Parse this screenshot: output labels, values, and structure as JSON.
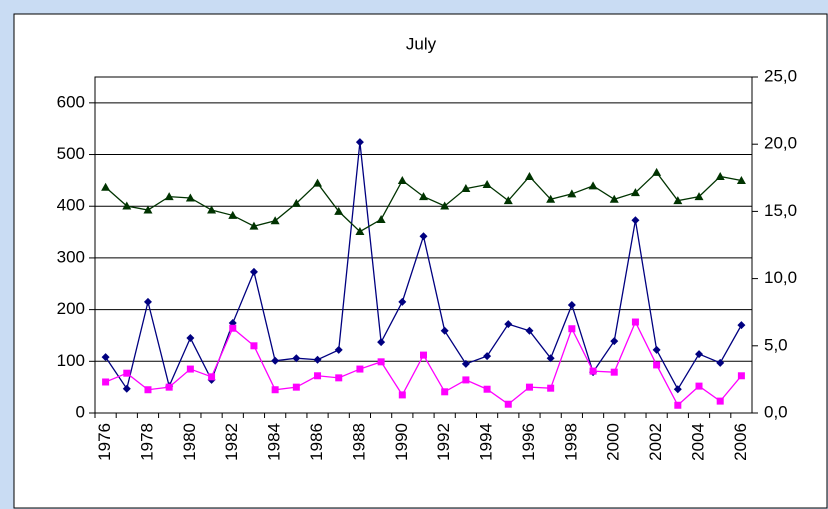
{
  "chart_data": {
    "type": "line",
    "title": "July",
    "categories": [
      "1976",
      null,
      "1978",
      null,
      "1980",
      null,
      "1982",
      null,
      "1984",
      null,
      "1986",
      null,
      "1988",
      null,
      "1990",
      null,
      "1992",
      null,
      "1994",
      null,
      "1996",
      null,
      "1998",
      null,
      "2000",
      null,
      "2002",
      null,
      "2004",
      null,
      "2006"
    ],
    "series": [
      {
        "color": "#000080",
        "marker": "diamond",
        "values": [
          108,
          47,
          215,
          52,
          145,
          64,
          174,
          273,
          101,
          106,
          103,
          122,
          524,
          137,
          215,
          342,
          159,
          95,
          110,
          172,
          159,
          106,
          209,
          79,
          139,
          373,
          122,
          46,
          114,
          97,
          170
        ]
      },
      {
        "color": "#ff00ff",
        "marker": "square",
        "values": [
          60,
          77,
          45,
          50,
          85,
          70,
          164,
          130,
          45,
          50,
          72,
          68,
          85,
          99,
          35,
          112,
          41,
          64,
          46,
          17,
          50,
          48,
          163,
          81,
          79,
          176,
          93,
          15,
          52,
          23,
          72
        ]
      },
      {
        "color": "#003300",
        "marker": "triangle",
        "axis": "y2",
        "values": [
          16.8,
          15.4,
          15.1,
          16.1,
          16.0,
          15.1,
          14.7,
          13.9,
          14.3,
          15.6,
          17.1,
          15.0,
          13.5,
          14.4,
          17.3,
          16.1,
          15.4,
          16.7,
          17.0,
          15.8,
          17.6,
          15.9,
          16.3,
          16.9,
          15.9,
          16.4,
          17.9,
          15.8,
          16.1,
          17.6,
          17.3
        ]
      }
    ],
    "ylim": [
      0,
      650
    ],
    "yticks": [
      0,
      100,
      200,
      300,
      400,
      500,
      600
    ],
    "y2lim": [
      0,
      25
    ],
    "y2ticks": [
      {
        "value": 0,
        "label": "0,0"
      },
      {
        "value": 5,
        "label": "5,0"
      },
      {
        "value": 10,
        "label": "10,0"
      },
      {
        "value": 15,
        "label": "15,0"
      },
      {
        "value": 20,
        "label": "20,0"
      },
      {
        "value": 25,
        "label": "25,0"
      }
    ],
    "grid": true
  }
}
